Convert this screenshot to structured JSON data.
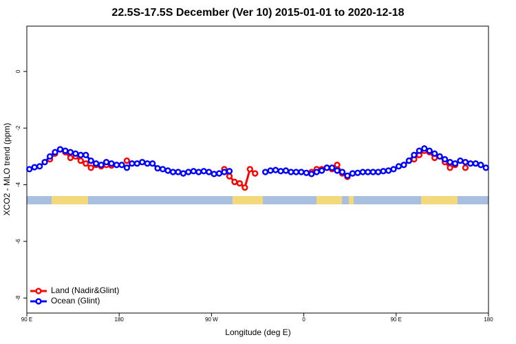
{
  "chart_data": {
    "type": "line",
    "title": "22.5S-17.5S December (Ver 10)   2015-01-01 to 2020-12-18",
    "x_label": "Longitude (deg E)",
    "y_label": "XCO2 - MLO trend (ppm)",
    "xlim": [
      90,
      540
    ],
    "ylim": [
      -8.53,
      1.6
    ],
    "xticks": [
      {
        "value": 90,
        "label": "90 E"
      },
      180,
      {
        "value": 270,
        "label": "90 W"
      },
      {
        "value": 360,
        "label": "0"
      },
      {
        "value": 450,
        "label": "90 E"
      },
      {
        "value": 540,
        "label": "180"
      }
    ],
    "yticks": [
      0,
      -2,
      -4,
      -6,
      -8
    ],
    "legend": "bottom-left",
    "x": [
      92.5,
      97.5,
      102.5,
      107.5,
      112.5,
      117.5,
      122.5,
      127.5,
      132.5,
      137.5,
      142.5,
      147.5,
      152.5,
      157.5,
      162.5,
      167.5,
      172.5,
      177.5,
      182.5,
      187.5,
      192.5,
      197.5,
      202.5,
      207.5,
      212.5,
      217.5,
      222.5,
      227.5,
      232.5,
      237.5,
      242.5,
      247.5,
      252.5,
      257.5,
      262.5,
      267.5,
      272.5,
      277.5,
      282.5,
      287.5,
      292.5,
      297.5,
      302.5,
      307.5,
      312.5,
      317.5,
      322.5,
      327.5,
      332.5,
      337.5,
      342.5,
      347.5,
      352.5,
      357.5,
      362.5,
      367.5,
      372.5,
      377.5,
      382.5,
      387.5,
      392.5,
      397.5,
      402.5,
      407.5,
      412.5,
      417.5,
      422.5,
      427.5,
      432.5,
      437.5,
      442.5,
      447.5,
      452.5,
      457.5,
      462.5,
      467.5,
      472.5,
      477.5,
      482.5,
      487.5,
      492.5,
      497.5,
      502.5,
      507.5,
      512.5,
      517.5,
      522.5,
      527.5,
      532.5,
      537.5
    ],
    "series": [
      {
        "name": "Land (Nadir&Glint)",
        "color": "#ff0000",
        "values": [
          null,
          null,
          null,
          null,
          -3.1,
          -2.9,
          -2.75,
          -2.85,
          -3.05,
          -3.0,
          -3.15,
          -3.25,
          -3.4,
          -3.3,
          -3.35,
          -3.3,
          -3.32,
          null,
          null,
          -3.15,
          null,
          null,
          null,
          null,
          null,
          null,
          null,
          null,
          null,
          null,
          null,
          null,
          null,
          null,
          null,
          null,
          null,
          null,
          -3.45,
          -3.7,
          -3.9,
          -3.95,
          -4.1,
          -3.45,
          -3.6,
          null,
          null,
          null,
          null,
          null,
          null,
          null,
          null,
          null,
          null,
          -3.55,
          -3.45,
          -3.45,
          -3.4,
          -3.45,
          -3.3,
          -3.6,
          -3.72,
          null,
          null,
          null,
          null,
          null,
          null,
          null,
          null,
          null,
          null,
          null,
          -3.15,
          -3.1,
          -2.95,
          -2.8,
          -2.85,
          -3.05,
          -3.0,
          -3.2,
          -3.4,
          -3.3,
          null,
          -3.4,
          null,
          null,
          null,
          null
        ]
      },
      {
        "name": "Ocean (Glint)",
        "color": "#0000ff",
        "values": [
          -3.45,
          -3.38,
          -3.35,
          -3.2,
          -3.0,
          -2.85,
          -2.75,
          -2.8,
          -2.85,
          -2.9,
          -2.95,
          -2.95,
          -3.15,
          -3.25,
          -3.3,
          -3.2,
          -3.25,
          -3.3,
          -3.3,
          -3.4,
          -3.25,
          -3.25,
          -3.2,
          -3.25,
          -3.25,
          -3.42,
          -3.45,
          -3.5,
          -3.55,
          -3.55,
          -3.6,
          -3.55,
          -3.52,
          -3.55,
          -3.52,
          -3.55,
          -3.62,
          -3.6,
          -3.55,
          -3.52,
          null,
          null,
          null,
          null,
          null,
          null,
          -3.55,
          -3.5,
          -3.48,
          -3.52,
          -3.5,
          -3.55,
          -3.55,
          -3.55,
          -3.58,
          -3.62,
          -3.55,
          -3.5,
          -3.4,
          -3.4,
          -3.5,
          -3.55,
          -3.68,
          -3.6,
          -3.58,
          -3.55,
          -3.55,
          -3.55,
          -3.55,
          -3.52,
          -3.5,
          -3.45,
          -3.35,
          -3.3,
          -3.15,
          -2.95,
          -2.8,
          -2.72,
          -2.8,
          -2.9,
          -3.0,
          -3.1,
          -3.2,
          -3.25,
          -3.15,
          -3.2,
          -3.25,
          -3.25,
          -3.3,
          -3.4
        ]
      }
    ]
  }
}
